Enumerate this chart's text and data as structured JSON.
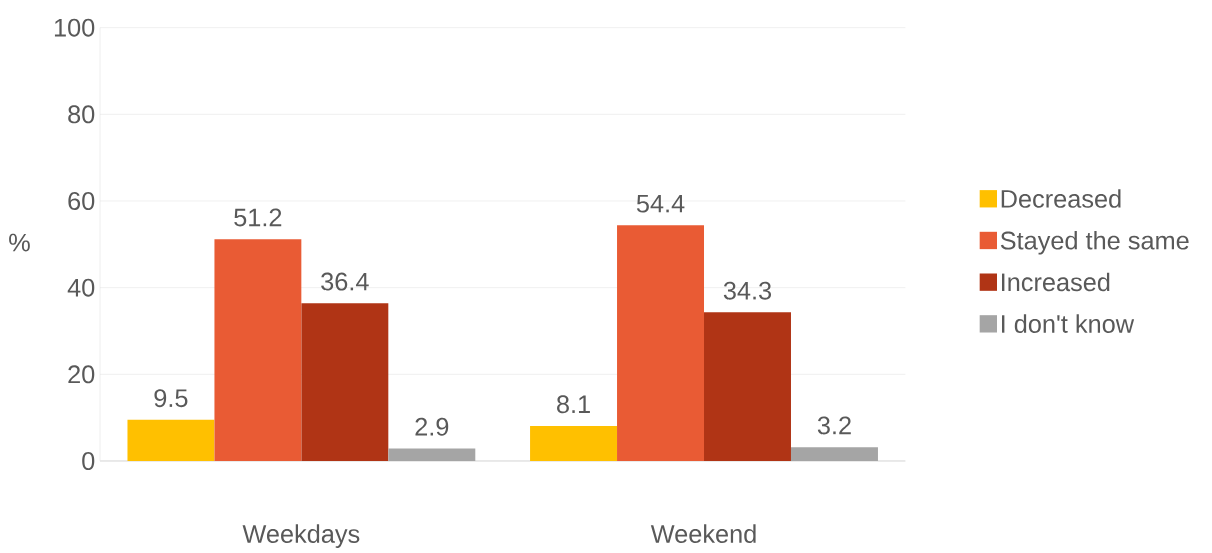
{
  "chart_data": {
    "type": "bar",
    "ylabel": "%",
    "categories": [
      "Weekdays",
      "Weekend"
    ],
    "series": [
      {
        "name": "Decreased",
        "color": "#ffc000",
        "values": [
          9.5,
          8.1
        ]
      },
      {
        "name": "Stayed the same",
        "color": "#e95b34",
        "values": [
          51.2,
          54.4
        ]
      },
      {
        "name": "Increased",
        "color": "#b03415",
        "values": [
          36.4,
          34.3
        ]
      },
      {
        "name": "I don't know",
        "color": "#a5a5a5",
        "values": [
          2.9,
          3.2
        ]
      }
    ],
    "ylim": [
      0,
      100
    ],
    "yticks": [
      0,
      20,
      40,
      60,
      80,
      100
    ],
    "grid": "y",
    "legend": "right",
    "data_labels": true
  }
}
